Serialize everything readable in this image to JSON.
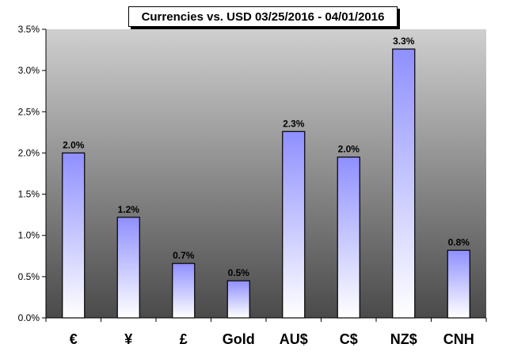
{
  "chart_data": {
    "type": "bar",
    "title": "Currencies vs. USD 03/25/2016 - 04/01/2016",
    "categories": [
      "€",
      "¥",
      "£",
      "Gold",
      "AU$",
      "C$",
      "NZ$",
      "CNH"
    ],
    "values": [
      2.0,
      1.22,
      0.66,
      0.45,
      2.26,
      1.95,
      3.26,
      0.82
    ],
    "data_labels": [
      "2.0%",
      "1.2%",
      "0.7%",
      "0.5%",
      "2.3%",
      "2.0%",
      "3.3%",
      "0.8%"
    ],
    "y_ticks": [
      "0.0%",
      "0.5%",
      "1.0%",
      "1.5%",
      "2.0%",
      "2.5%",
      "3.0%",
      "3.5%"
    ],
    "ylim": [
      0,
      3.5
    ],
    "xlabel": "",
    "ylabel": "",
    "grid": false,
    "colors": {
      "plot_top": "#cfcfcf",
      "plot_bottom": "#4a4a4a",
      "bar_top": "#8f8fff",
      "bar_bottom": "#ffffff",
      "bar_stroke": "#000000"
    }
  }
}
